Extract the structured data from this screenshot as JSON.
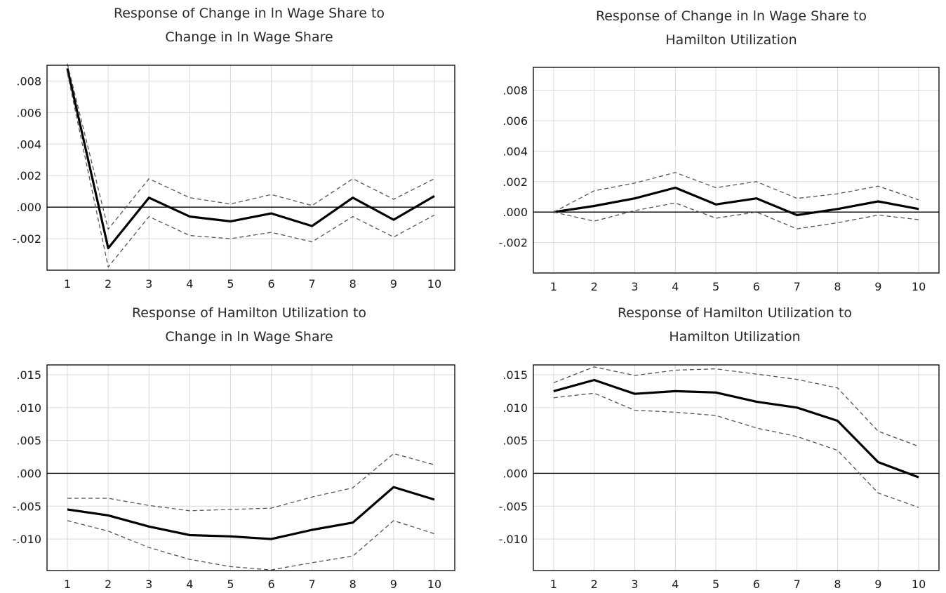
{
  "chart_data": [
    {
      "type": "line",
      "title_line1": "Response of Change in ln Wage Share to",
      "title_line2": "Change in ln Wage Share",
      "x": [
        1,
        2,
        3,
        4,
        5,
        6,
        7,
        8,
        9,
        10
      ],
      "ylim": [
        -0.004,
        0.009
      ],
      "yticks": [
        0.008,
        0.006,
        0.004,
        0.002,
        0.0,
        -0.002
      ],
      "ytick_labels": [
        ".008",
        ".006",
        ".004",
        ".002",
        ".000",
        "-.002"
      ],
      "zero_line": true,
      "grid": true,
      "series": [
        {
          "role": "response",
          "values": [
            0.0088,
            -0.0026,
            0.0006,
            -0.0006,
            -0.0009,
            -0.0004,
            -0.0012,
            0.0006,
            -0.0008,
            0.0007
          ]
        },
        {
          "role": "upper_band",
          "values": [
            0.0091,
            -0.0014,
            0.0018,
            0.0006,
            0.0002,
            0.0008,
            0.0001,
            0.0018,
            0.0005,
            0.0018
          ]
        },
        {
          "role": "lower_band",
          "values": [
            0.0085,
            -0.0038,
            -0.0006,
            -0.0018,
            -0.002,
            -0.0016,
            -0.0022,
            -0.0006,
            -0.0019,
            -0.0005
          ]
        }
      ]
    },
    {
      "type": "line",
      "title_line1": "Response of Change in ln Wage Share to",
      "title_line2": "Hamilton Utilization",
      "x": [
        1,
        2,
        3,
        4,
        5,
        6,
        7,
        8,
        9,
        10
      ],
      "ylim": [
        -0.004,
        0.0095
      ],
      "yticks": [
        0.008,
        0.006,
        0.004,
        0.002,
        0.0,
        -0.002
      ],
      "ytick_labels": [
        ".008",
        ".006",
        ".004",
        ".002",
        ".000",
        "-.002"
      ],
      "zero_line": true,
      "grid": true,
      "series": [
        {
          "role": "response",
          "values": [
            0.0,
            0.0004,
            0.0009,
            0.0016,
            0.0005,
            0.0009,
            -0.0002,
            0.0002,
            0.0007,
            0.0002
          ]
        },
        {
          "role": "upper_band",
          "values": [
            0.0,
            0.0014,
            0.0019,
            0.0026,
            0.0016,
            0.002,
            0.0009,
            0.0012,
            0.0017,
            0.0008
          ]
        },
        {
          "role": "lower_band",
          "values": [
            0.0,
            -0.0006,
            0.0001,
            0.0006,
            -0.0004,
            0.0,
            -0.0011,
            -0.0007,
            -0.0002,
            -0.0005
          ]
        }
      ]
    },
    {
      "type": "line",
      "title_line1": "Response of Hamilton Utilization to",
      "title_line2": "Change in ln Wage Share",
      "x": [
        1,
        2,
        3,
        4,
        5,
        6,
        7,
        8,
        9,
        10
      ],
      "ylim": [
        -0.0148,
        0.0165
      ],
      "yticks": [
        0.015,
        0.01,
        0.005,
        0.0,
        -0.005,
        -0.01
      ],
      "ytick_labels": [
        ".015",
        ".010",
        ".005",
        ".000",
        "-.005",
        "-.010"
      ],
      "zero_line": true,
      "grid": true,
      "series": [
        {
          "role": "response",
          "values": [
            -0.0055,
            -0.0064,
            -0.0081,
            -0.0094,
            -0.0096,
            -0.01,
            -0.0086,
            -0.0075,
            -0.0021,
            -0.004
          ]
        },
        {
          "role": "upper_band",
          "values": [
            -0.0038,
            -0.0038,
            -0.0049,
            -0.0057,
            -0.0055,
            -0.0053,
            -0.0036,
            -0.0022,
            0.003,
            0.0013
          ]
        },
        {
          "role": "lower_band",
          "values": [
            -0.0072,
            -0.0088,
            -0.0113,
            -0.0131,
            -0.0142,
            -0.0147,
            -0.0136,
            -0.0126,
            -0.0072,
            -0.0092
          ]
        }
      ]
    },
    {
      "type": "line",
      "title_line1": "Response of Hamilton Utilization to",
      "title_line2": "Hamilton Utilization",
      "x": [
        1,
        2,
        3,
        4,
        5,
        6,
        7,
        8,
        9,
        10
      ],
      "ylim": [
        -0.0148,
        0.0165
      ],
      "yticks": [
        0.015,
        0.01,
        0.005,
        0.0,
        -0.005,
        -0.01
      ],
      "ytick_labels": [
        ".015",
        ".010",
        ".005",
        ".000",
        "-.005",
        "-.010"
      ],
      "zero_line": true,
      "grid": true,
      "series": [
        {
          "role": "response",
          "values": [
            0.0125,
            0.0142,
            0.0121,
            0.0125,
            0.0123,
            0.0109,
            0.01,
            0.008,
            0.0017,
            -0.0006
          ]
        },
        {
          "role": "upper_band",
          "values": [
            0.0138,
            0.0162,
            0.0149,
            0.0157,
            0.0159,
            0.0151,
            0.0143,
            0.013,
            0.0064,
            0.0041
          ]
        },
        {
          "role": "lower_band",
          "values": [
            0.0115,
            0.0122,
            0.0096,
            0.0093,
            0.0088,
            0.0069,
            0.0056,
            0.0035,
            -0.003,
            -0.0052
          ]
        }
      ]
    }
  ],
  "style": {
    "response_color": "#000000",
    "band_color": "#555555",
    "grid_color": "#d9d9d9",
    "frame_color": "#000000"
  }
}
